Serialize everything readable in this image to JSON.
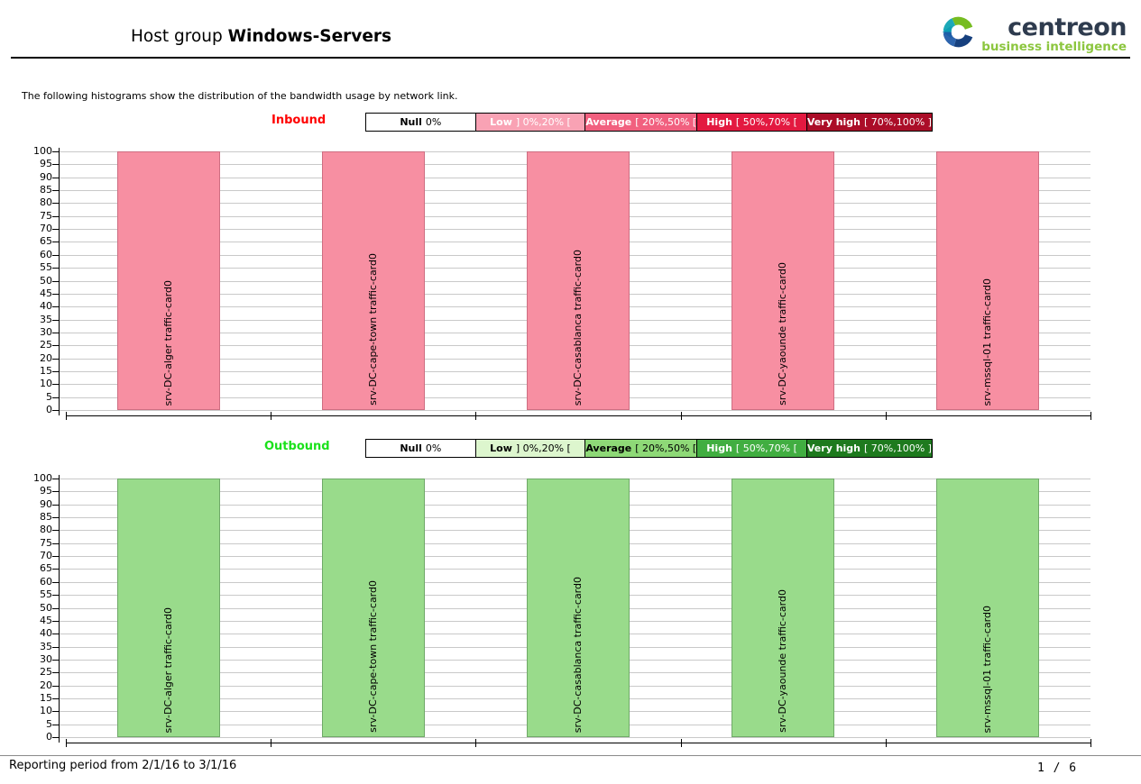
{
  "header": {
    "title_prefix": "Host group",
    "title_main": "Windows-Servers",
    "logo_name": "centreon",
    "logo_tagline": "business intelligence",
    "logo_name_color": "#2E3B4E",
    "logo_tagline_color": "#8CC63F"
  },
  "description": "The following histograms show the distribution of the bandwidth usage by network link.",
  "footer": {
    "reporting_period": "Reporting period from 2/1/16 to 3/1/16",
    "page": "1 / 6"
  },
  "chart_data": [
    {
      "type": "bar",
      "title": "Inbound",
      "label_color": "#FF0000",
      "bar_fill": "#F78FA2",
      "bar_border": "#CE6E82",
      "grid": true,
      "legend_position": "top",
      "ylim": [
        0,
        100
      ],
      "ytick_step": 5,
      "categories": [
        "srv-DC-alger traffic-card0",
        "srv-DC-cape-town traffic-card0",
        "srv-DC-casablanca traffic-card0",
        "srv-DC-yaounde traffic-card0",
        "srv-mssql-01 traffic-card0"
      ],
      "values": [
        100,
        100,
        100,
        100,
        100
      ],
      "legend": [
        {
          "name": "Null",
          "range": "0%",
          "bg": "#FFFFFF",
          "fg": "#000000"
        },
        {
          "name": "Low",
          "range": "] 0%,20% [",
          "bg": "#F9A2B4",
          "fg": "#FFFFFF"
        },
        {
          "name": "Average",
          "range": "[ 20%,50% [",
          "bg": "#F1607F",
          "fg": "#FFFFFF"
        },
        {
          "name": "High",
          "range": "[ 50%,70% [",
          "bg": "#E31940",
          "fg": "#FFFFFF"
        },
        {
          "name": "Very high",
          "range": "[ 70%,100% ]",
          "bg": "#AB0D28",
          "fg": "#FFFFFF"
        }
      ]
    },
    {
      "type": "bar",
      "title": "Outbound",
      "label_color": "#1BE11B",
      "bar_fill": "#99DB8B",
      "bar_border": "#6FA968",
      "grid": true,
      "legend_position": "top",
      "ylim": [
        0,
        100
      ],
      "ytick_step": 5,
      "categories": [
        "srv-DC-alger traffic-card0",
        "srv-DC-cape-town traffic-card0",
        "srv-DC-casablanca traffic-card0",
        "srv-DC-yaounde traffic-card0",
        "srv-mssql-01 traffic-card0"
      ],
      "values": [
        100,
        100,
        100,
        100,
        100
      ],
      "legend": [
        {
          "name": "Null",
          "range": "0%",
          "bg": "#FFFFFF",
          "fg": "#000000"
        },
        {
          "name": "Low",
          "range": "] 0%,20% [",
          "bg": "#DDF6CE",
          "fg": "#000000"
        },
        {
          "name": "Average",
          "range": "[ 20%,50% [",
          "bg": "#8ED977",
          "fg": "#000000"
        },
        {
          "name": "High",
          "range": "[ 50%,70% [",
          "bg": "#41AE41",
          "fg": "#FFFFFF"
        },
        {
          "name": "Very high",
          "range": "[ 70%,100% ]",
          "bg": "#1E7A1E",
          "fg": "#FFFFFF"
        }
      ]
    }
  ]
}
